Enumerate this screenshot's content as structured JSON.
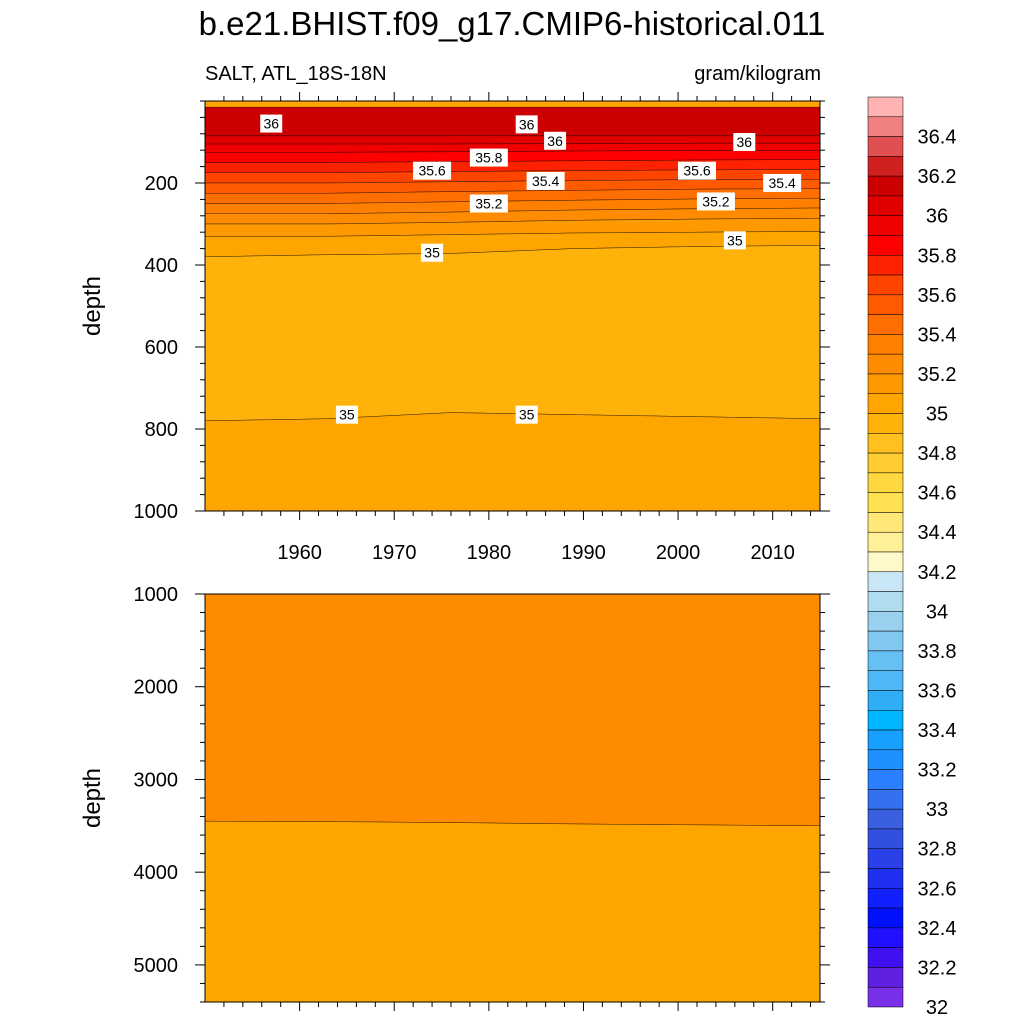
{
  "figure": {
    "title": "b.e21.BHIST.f09_g17.CMIP6-historical.011",
    "left_label": "SALT, ATL_18S-18N",
    "right_label": "gram/kilogram"
  },
  "chart_data": [
    {
      "type": "heatmap",
      "name": "upper",
      "title": "",
      "xlabel": "",
      "ylabel": "depth",
      "xlim": [
        1950,
        2015
      ],
      "ylim": [
        1000,
        0
      ],
      "xticks": [
        1960,
        1970,
        1980,
        1990,
        2000,
        2010
      ],
      "yticks": [
        200,
        400,
        600,
        800,
        1000
      ],
      "bands": [
        {
          "color": "#cc0000",
          "from_depth": [
            15,
            15,
            15,
            15,
            15,
            15
          ],
          "to_depth": [
            85,
            85,
            85,
            85,
            85,
            85
          ],
          "x": [
            1950,
            1963,
            1976,
            1989,
            2002,
            2015
          ]
        },
        {
          "color": "#e00000",
          "from_depth": [
            85,
            85,
            85,
            85,
            85,
            85
          ],
          "to_depth": [
            105,
            105,
            105,
            104,
            103,
            103
          ],
          "x": [
            1950,
            1963,
            1976,
            1989,
            2002,
            2015
          ]
        },
        {
          "color": "#f00000",
          "from_depth": [
            105,
            105,
            105,
            104,
            103,
            103
          ],
          "to_depth": [
            125,
            125,
            124,
            122,
            121,
            120
          ],
          "x": [
            1950,
            1963,
            1976,
            1989,
            2002,
            2015
          ]
        },
        {
          "color": "#ff0000",
          "from_depth": [
            125,
            125,
            124,
            122,
            121,
            120
          ],
          "to_depth": [
            150,
            150,
            148,
            146,
            144,
            143
          ],
          "x": [
            1950,
            1963,
            1976,
            1989,
            2002,
            2015
          ]
        },
        {
          "color": "#ff2200",
          "from_depth": [
            150,
            150,
            148,
            146,
            144,
            143
          ],
          "to_depth": [
            175,
            175,
            172,
            170,
            168,
            167
          ],
          "x": [
            1950,
            1963,
            1976,
            1989,
            2002,
            2015
          ]
        },
        {
          "color": "#ff4400",
          "from_depth": [
            175,
            175,
            172,
            170,
            168,
            167
          ],
          "to_depth": [
            200,
            200,
            197,
            194,
            192,
            191
          ],
          "x": [
            1950,
            1963,
            1976,
            1989,
            2002,
            2015
          ]
        },
        {
          "color": "#ff5a00",
          "from_depth": [
            200,
            200,
            197,
            194,
            192,
            191
          ],
          "to_depth": [
            225,
            225,
            221,
            218,
            215,
            214
          ],
          "x": [
            1950,
            1963,
            1976,
            1989,
            2002,
            2015
          ]
        },
        {
          "color": "#ff6e00",
          "from_depth": [
            225,
            225,
            221,
            218,
            215,
            214
          ],
          "to_depth": [
            250,
            250,
            246,
            242,
            239,
            237
          ],
          "x": [
            1950,
            1963,
            1976,
            1989,
            2002,
            2015
          ]
        },
        {
          "color": "#ff7f00",
          "from_depth": [
            250,
            250,
            246,
            242,
            239,
            237
          ],
          "to_depth": [
            275,
            275,
            271,
            266,
            263,
            261
          ],
          "x": [
            1950,
            1963,
            1976,
            1989,
            2002,
            2015
          ]
        },
        {
          "color": "#ff8c00",
          "from_depth": [
            275,
            275,
            271,
            266,
            263,
            261
          ],
          "to_depth": [
            300,
            300,
            296,
            291,
            288,
            286
          ],
          "x": [
            1950,
            1963,
            1976,
            1989,
            2002,
            2015
          ]
        },
        {
          "color": "#ff9900",
          "from_depth": [
            300,
            300,
            296,
            291,
            288,
            286
          ],
          "to_depth": [
            330,
            330,
            326,
            322,
            320,
            318
          ],
          "x": [
            1950,
            1963,
            1976,
            1989,
            2002,
            2015
          ]
        },
        {
          "color": "#ffa500",
          "from_depth": [
            330,
            330,
            326,
            322,
            320,
            318
          ],
          "to_depth": [
            380,
            375,
            372,
            360,
            355,
            352
          ],
          "x": [
            1950,
            1963,
            1976,
            1989,
            2002,
            2015
          ]
        },
        {
          "color": "#ffb30a",
          "from_depth": [
            380,
            375,
            372,
            360,
            355,
            352
          ],
          "to_depth": [
            780,
            775,
            760,
            765,
            770,
            775
          ],
          "x": [
            1950,
            1963,
            1976,
            1989,
            2002,
            2015
          ]
        },
        {
          "color": "#ffa500",
          "from_depth": [
            780,
            775,
            760,
            765,
            770,
            775
          ],
          "to_depth": [
            1000,
            1000,
            1000,
            1000,
            1000,
            1000
          ],
          "x": [
            1950,
            1963,
            1976,
            1989,
            2002,
            2015
          ]
        }
      ],
      "contour_labels": [
        {
          "text": "36",
          "x": 1957,
          "depth": 55
        },
        {
          "text": "36",
          "x": 1984,
          "depth": 57
        },
        {
          "text": "36",
          "x": 1987,
          "depth": 97
        },
        {
          "text": "36",
          "x": 2007,
          "depth": 100
        },
        {
          "text": "35.8",
          "x": 1980,
          "depth": 138
        },
        {
          "text": "35.6",
          "x": 1974,
          "depth": 170
        },
        {
          "text": "35.6",
          "x": 2002,
          "depth": 170
        },
        {
          "text": "35.4",
          "x": 1986,
          "depth": 195
        },
        {
          "text": "35.4",
          "x": 2011,
          "depth": 200
        },
        {
          "text": "35.2",
          "x": 1980,
          "depth": 250
        },
        {
          "text": "35.2",
          "x": 2004,
          "depth": 245
        },
        {
          "text": "35",
          "x": 2006,
          "depth": 340
        },
        {
          "text": "35",
          "x": 1974,
          "depth": 370
        },
        {
          "text": "35",
          "x": 1965,
          "depth": 765
        },
        {
          "text": "35",
          "x": 1984,
          "depth": 765
        }
      ]
    },
    {
      "type": "heatmap",
      "name": "lower",
      "title": "",
      "xlabel": "",
      "ylabel": "depth",
      "xlim": [
        1950,
        2015
      ],
      "ylim": [
        5400,
        1000
      ],
      "xticks": [
        1960,
        1970,
        1980,
        1990,
        2000,
        2010
      ],
      "yticks": [
        1000,
        2000,
        3000,
        4000,
        5000
      ],
      "bands": [
        {
          "color": "#ff8c00",
          "from_depth": [
            1000,
            1000,
            1000,
            1000,
            1000,
            1000
          ],
          "to_depth": [
            3450,
            3455,
            3465,
            3480,
            3490,
            3500
          ],
          "x": [
            1950,
            1963,
            1976,
            1989,
            2002,
            2015
          ]
        },
        {
          "color": "#ffa500",
          "from_depth": [
            3450,
            3455,
            3465,
            3480,
            3490,
            3500
          ],
          "to_depth": [
            5400,
            5400,
            5400,
            5400,
            5400,
            5400
          ],
          "x": [
            1950,
            1963,
            1976,
            1989,
            2002,
            2015
          ]
        }
      ],
      "contour_labels": []
    }
  ],
  "colorbar": {
    "labels": [
      "36.4",
      "36.2",
      "36",
      "35.8",
      "35.6",
      "35.4",
      "35.2",
      "35",
      "34.8",
      "34.6",
      "34.4",
      "34.2",
      "34",
      "33.8",
      "33.6",
      "33.4",
      "33.2",
      "33",
      "32.8",
      "32.6",
      "32.4",
      "32.2",
      "32"
    ],
    "colors": [
      "#ffb3b3",
      "#f08080",
      "#e05050",
      "#d02020",
      "#cc0000",
      "#e00000",
      "#f00000",
      "#ff0000",
      "#ff2200",
      "#ff4400",
      "#ff5a00",
      "#ff6e00",
      "#ff7f00",
      "#ff8c00",
      "#ff9900",
      "#ffa500",
      "#ffb30a",
      "#ffc020",
      "#ffcc33",
      "#ffd740",
      "#ffe050",
      "#ffe878",
      "#fff09a",
      "#fff8c8",
      "#c8e6f5",
      "#b0dcf0",
      "#98d0ee",
      "#80c8f0",
      "#66c0f4",
      "#4db8f5",
      "#30aef5",
      "#00b7ff",
      "#18a0ff",
      "#1e90ff",
      "#2a80ff",
      "#3570f0",
      "#3a60e0",
      "#3250e0",
      "#2a40e8",
      "#2030f0",
      "#1020ff",
      "#0010ff",
      "#2010ff",
      "#4010f0",
      "#6020e0",
      "#7a30e8"
    ]
  }
}
